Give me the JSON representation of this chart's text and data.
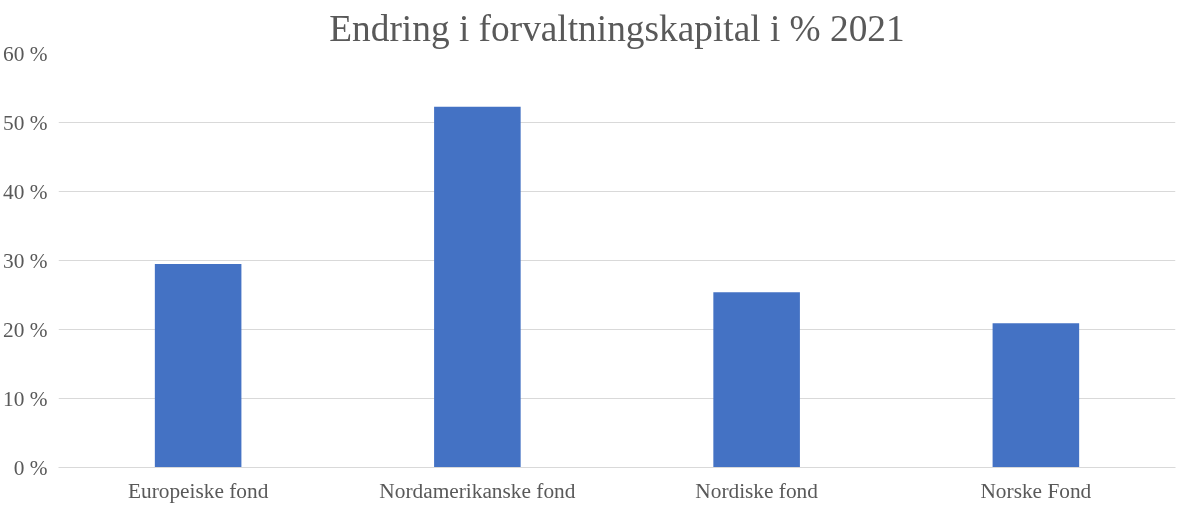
{
  "chart_data": {
    "type": "bar",
    "title": "Endring i forvaltningskapital i % 2021",
    "categories": [
      "Europeiske fond",
      "Nordamerikanske fond",
      "Nordiske fond",
      "Norske Fond"
    ],
    "values": [
      29.5,
      52.3,
      25.4,
      20.9
    ],
    "color": "#4472c4",
    "ylim": [
      0,
      60
    ],
    "yticks": [
      {
        "value": 0,
        "label": "0 %"
      },
      {
        "value": 10,
        "label": "10 %"
      },
      {
        "value": 20,
        "label": "20 %"
      },
      {
        "value": 30,
        "label": "30 %"
      },
      {
        "value": 40,
        "label": "40 %"
      },
      {
        "value": 50,
        "label": "50 %"
      },
      {
        "value": 60,
        "label": "60 %"
      }
    ],
    "grid": "y"
  }
}
